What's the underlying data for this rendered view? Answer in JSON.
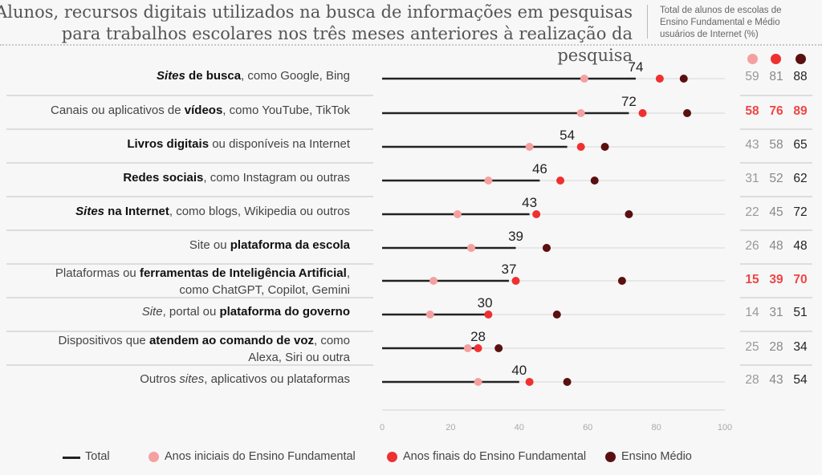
{
  "title_lines": [
    "Alunos, recursos digitais utilizados na busca de informações em pesquisas",
    "para trabalhos escolares nos três meses anteriores à realização da pesquisa"
  ],
  "subtitle_lines": [
    "Total de alunos de escolas de",
    "Ensino Fundamental e Médio",
    "usuários de Internet (%)"
  ],
  "colors": {
    "total": "#222222",
    "anos_iniciais": "#f5a0a0",
    "anos_finais": "#f03030",
    "ensino_medio": "#5a1010",
    "highlight": "#f04545"
  },
  "chart_data": {
    "type": "dot-plot",
    "xlim": [
      0,
      100
    ],
    "xticks": [
      "0",
      "20",
      "40",
      "60",
      "80",
      "100"
    ],
    "grid": true,
    "legend_placement": "bottom",
    "series": [
      {
        "name": "Total",
        "key": "total"
      },
      {
        "name": "Anos iniciais do Ensino Fundamental",
        "key": "anos_iniciais"
      },
      {
        "name": "Anos finais do Ensino Fundamental",
        "key": "anos_finais"
      },
      {
        "name": "Ensino Médio",
        "key": "ensino_medio"
      }
    ],
    "rows": [
      {
        "label": [
          [
            {
              "t": "Sites",
              "b": 1,
              "i": 1
            },
            {
              "t": " de busca",
              "b": 1
            },
            {
              "t": ", como Google, Bing"
            }
          ]
        ],
        "total": 74,
        "anos_iniciais": 59,
        "anos_finais": 81,
        "ensino_medio": 88,
        "highlight": false
      },
      {
        "label": [
          [
            {
              "t": "Canais ou aplicativos de "
            },
            {
              "t": "vídeos",
              "b": 1
            },
            {
              "t": ", como YouTube, TikTok"
            }
          ]
        ],
        "total": 72,
        "anos_iniciais": 58,
        "anos_finais": 76,
        "ensino_medio": 89,
        "highlight": true
      },
      {
        "label": [
          [
            {
              "t": "Livros digitais",
              "b": 1
            },
            {
              "t": " ou disponíveis na Internet"
            }
          ]
        ],
        "total": 54,
        "anos_iniciais": 43,
        "anos_finais": 58,
        "ensino_medio": 65,
        "highlight": false
      },
      {
        "label": [
          [
            {
              "t": "Redes sociais",
              "b": 1
            },
            {
              "t": ", como Instagram ou outras"
            }
          ]
        ],
        "total": 46,
        "anos_iniciais": 31,
        "anos_finais": 52,
        "ensino_medio": 62,
        "highlight": false
      },
      {
        "label": [
          [
            {
              "t": "Sites",
              "b": 1,
              "i": 1
            },
            {
              "t": " na Internet",
              "b": 1
            },
            {
              "t": ", como blogs, Wikipedia ou outros"
            }
          ]
        ],
        "total": 43,
        "anos_iniciais": 22,
        "anos_finais": 45,
        "ensino_medio": 72,
        "highlight": false
      },
      {
        "label": [
          [
            {
              "t": "Site ou "
            },
            {
              "t": "plataforma da escola",
              "b": 1
            }
          ]
        ],
        "total": 39,
        "anos_iniciais": 26,
        "anos_finais": 48,
        "ensino_medio": 48,
        "highlight": false
      },
      {
        "label": [
          [
            {
              "t": "Plataformas ou "
            },
            {
              "t": "ferramentas de Inteligência Artificial",
              "b": 1
            },
            {
              "t": ","
            }
          ],
          [
            {
              "t": "como ChatGPT, Copilot, Gemini"
            }
          ]
        ],
        "total": 37,
        "anos_iniciais": 15,
        "anos_finais": 39,
        "ensino_medio": 70,
        "highlight": true
      },
      {
        "label": [
          [
            {
              "t": "Site",
              "i": 1
            },
            {
              "t": ", portal ou "
            },
            {
              "t": "plataforma do governo",
              "b": 1
            }
          ]
        ],
        "total": 30,
        "anos_iniciais": 14,
        "anos_finais": 31,
        "ensino_medio": 51,
        "highlight": false
      },
      {
        "label": [
          [
            {
              "t": "Dispositivos que "
            },
            {
              "t": "atendem ao comando de voz",
              "b": 1
            },
            {
              "t": ", como"
            }
          ],
          [
            {
              "t": "Alexa, Siri ou outra"
            }
          ]
        ],
        "total": 28,
        "anos_iniciais": 25,
        "anos_finais": 28,
        "ensino_medio": 34,
        "highlight": false
      },
      {
        "label": [
          [
            {
              "t": "Outros "
            },
            {
              "t": "sites",
              "i": 1
            },
            {
              "t": ", aplicativos ou plataformas"
            }
          ]
        ],
        "total": 40,
        "anos_iniciais": 28,
        "anos_finais": 43,
        "ensino_medio": 54,
        "highlight": false
      }
    ]
  }
}
